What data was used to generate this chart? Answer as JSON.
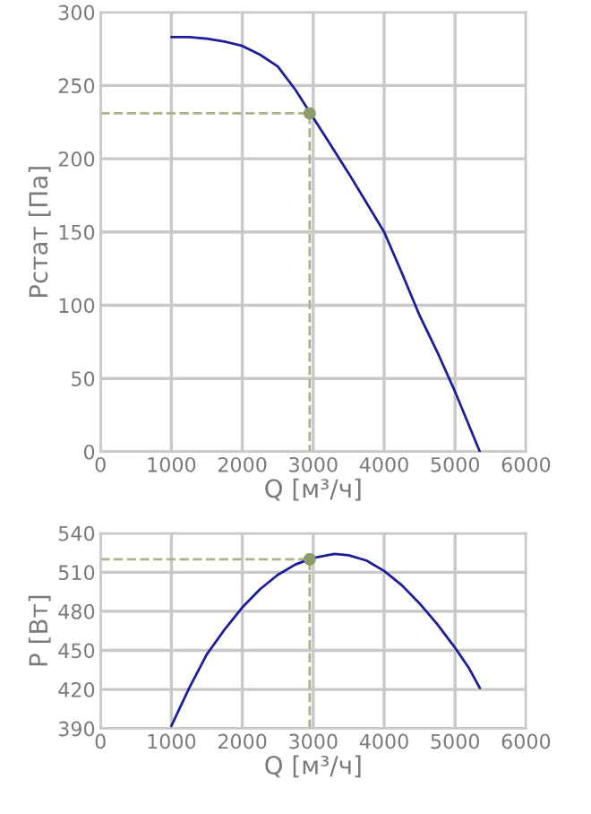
{
  "chart_data": [
    {
      "type": "line",
      "xlabel": "Q [м³/ч]",
      "ylabel": "Рстат [Па]",
      "xlim": [
        0,
        6000
      ],
      "ylim": [
        0,
        300
      ],
      "xticks": [
        0,
        1000,
        2000,
        3000,
        4000,
        5000,
        6000
      ],
      "yticks": [
        0,
        50,
        100,
        150,
        200,
        250,
        300
      ],
      "grid": true,
      "series": [
        {
          "color": "#1c1c9c",
          "x": [
            1000,
            1250,
            1500,
            1750,
            2000,
            2250,
            2500,
            2750,
            3000,
            3250,
            3500,
            3750,
            4000,
            4250,
            4500,
            4750,
            5000,
            5350
          ],
          "values": [
            283,
            283,
            282,
            280,
            277,
            271,
            263,
            247,
            228,
            209,
            190,
            170,
            150,
            122,
            93,
            68,
            41,
            0
          ]
        },
        {
          "color": "#a8b48c",
          "line_style": "dashed",
          "x": [
            0,
            2950,
            2950
          ],
          "values": [
            231,
            231,
            0
          ]
        },
        {
          "type": "scatter",
          "color": "#8c9c6c",
          "marker": "circle",
          "x": [
            2950
          ],
          "values": [
            231
          ]
        }
      ]
    },
    {
      "type": "line",
      "xlabel": "Q [м³/ч]",
      "ylabel": "P [Вт]",
      "xlim": [
        0,
        6000
      ],
      "ylim": [
        390,
        540
      ],
      "xticks": [
        0,
        1000,
        2000,
        3000,
        4000,
        5000,
        6000
      ],
      "yticks": [
        390,
        420,
        450,
        480,
        510,
        540
      ],
      "grid": true,
      "series": [
        {
          "color": "#1c1c9c",
          "x": [
            1000,
            1250,
            1500,
            1750,
            2000,
            2250,
            2500,
            2750,
            3000,
            3300,
            3500,
            3750,
            4000,
            4250,
            4500,
            4750,
            5000,
            5200,
            5350
          ],
          "values": [
            392,
            421,
            447,
            466,
            483,
            497,
            508,
            516,
            521,
            524,
            523,
            519,
            511,
            500,
            486,
            470,
            452,
            436,
            421
          ]
        },
        {
          "color": "#a8b48c",
          "line_style": "dashed",
          "x": [
            0,
            2950,
            2950
          ],
          "values": [
            520,
            520,
            390
          ]
        },
        {
          "type": "scatter",
          "color": "#8c9c6c",
          "marker": "circle",
          "x": [
            2950
          ],
          "values": [
            520
          ]
        }
      ]
    }
  ]
}
